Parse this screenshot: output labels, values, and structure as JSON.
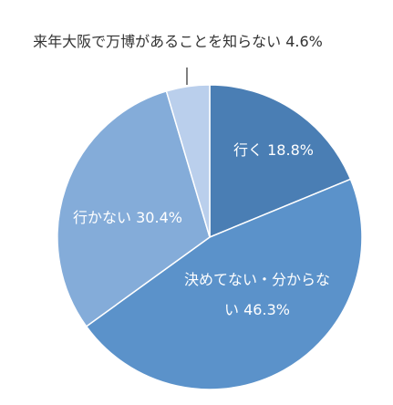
{
  "chart_data": {
    "type": "pie",
    "title": "",
    "start_angle_deg": 0,
    "direction": "clockwise",
    "slices": [
      {
        "label": "行く",
        "value": 18.8,
        "display_label": "行く 18.8%",
        "color": "#4a7eb4",
        "text_color": "#ffffff"
      },
      {
        "label": "決めてない・分からない",
        "value": 46.3,
        "display_label": "決めてない・分からな||い 46.3%",
        "color": "#5b92ca",
        "text_color": "#ffffff"
      },
      {
        "label": "行かない",
        "value": 30.4,
        "display_label": "行かない 30.4%",
        "color": "#84acd9",
        "text_color": "#ffffff"
      },
      {
        "label": "来年大阪で万博があることを知らない",
        "value": 4.6,
        "display_label": "来年大阪で万博があることを知らない 4.6%",
        "color": "#bacfec",
        "text_color": "#333333"
      }
    ],
    "legend": "none"
  }
}
